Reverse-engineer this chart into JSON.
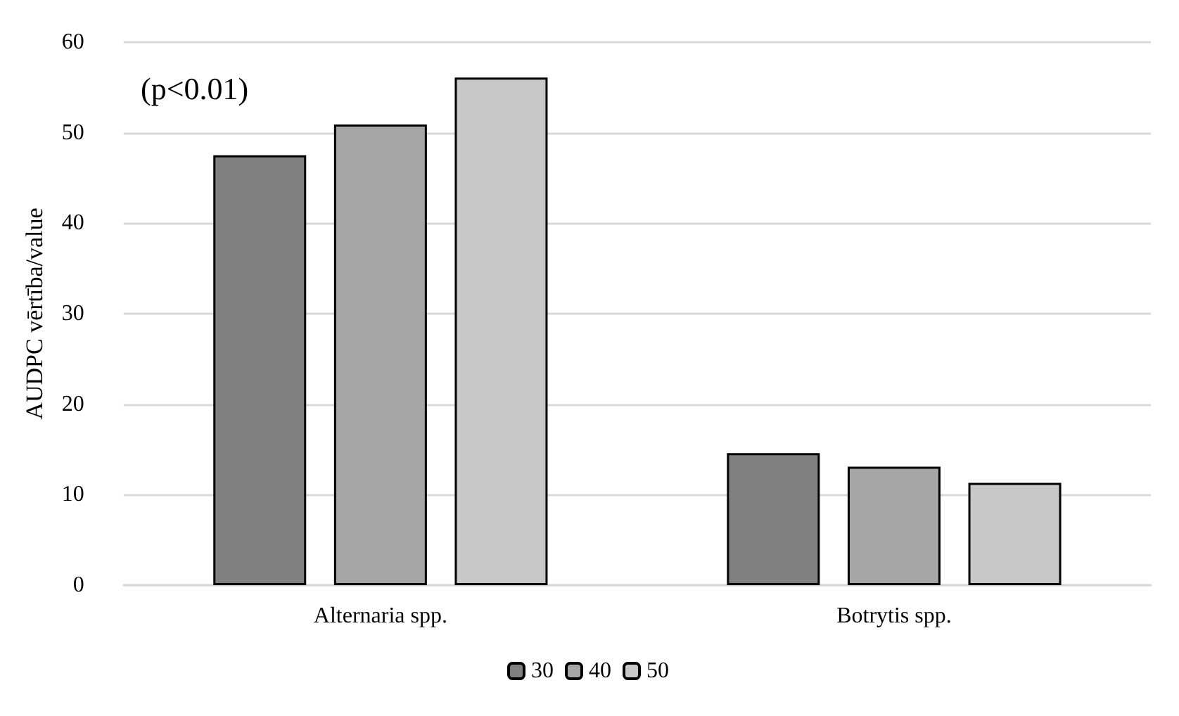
{
  "chart_data": {
    "type": "bar",
    "ylabel": "AUDPC vērtība/value",
    "categories": [
      "Alternaria spp.",
      "Botrytis spp."
    ],
    "series": [
      {
        "name": "30",
        "color": "#808080",
        "values": [
          47.5,
          14.6
        ]
      },
      {
        "name": "40",
        "color": "#a6a6a6",
        "values": [
          50.9,
          13.1
        ]
      },
      {
        "name": "50",
        "color": "#c8c8c8",
        "values": [
          56.1,
          11.3
        ]
      }
    ],
    "ylim": [
      0,
      60
    ],
    "yticks": [
      0,
      10,
      20,
      30,
      40,
      50,
      60
    ],
    "grid": "y",
    "legend": "bottom",
    "annotations": [
      "(p<0.01)"
    ]
  }
}
